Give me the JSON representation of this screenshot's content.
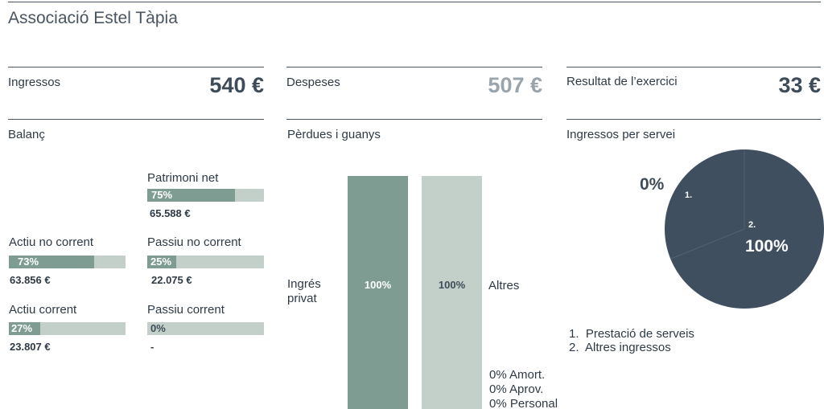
{
  "header": {
    "title": "Associació Estel Tàpia"
  },
  "kpis": {
    "income": {
      "label": "Ingressos",
      "value": "540 €"
    },
    "expenses": {
      "label": "Despeses",
      "value": "507 €"
    },
    "result": {
      "label": "Resultat de l’exercici",
      "value": "33 €"
    }
  },
  "colors": {
    "bar_fill": "#7e9c91",
    "bar_track": "#c3d0c9",
    "pie": "#3f4f60",
    "expenses_value": "#9aa4ad",
    "text": "#2e3a46"
  },
  "balance": {
    "title": "Balanç",
    "items": [
      {
        "key": "patrimoni_net",
        "label": "Patrimoni net",
        "percent": 75,
        "percent_label": "75%",
        "amount": "65.588 €"
      },
      {
        "key": "actiu_no_corrent",
        "label": "Actiu no corrent",
        "percent": 73,
        "percent_label": "73%",
        "amount": "63.856 €"
      },
      {
        "key": "passiu_no_corrent",
        "label": "Passiu no corrent",
        "percent": 25,
        "percent_label": "25%",
        "amount": "22.075 €"
      },
      {
        "key": "actiu_corrent",
        "label": "Actiu corrent",
        "percent": 27,
        "percent_label": "27%",
        "amount": "23.807 €"
      },
      {
        "key": "passiu_corrent",
        "label": "Passiu corrent",
        "percent": 0,
        "percent_label": "0%",
        "amount": "-"
      }
    ]
  },
  "pnl": {
    "title": "Pèrdues i guanys",
    "income_label_line1": "Ingrés",
    "income_label_line2": "privat",
    "income_percent": "100%",
    "expense_percent": "100%",
    "expense_label": "Altres",
    "other_expenses": [
      "0% Amort.",
      "0% Aprov.",
      "0% Personal"
    ]
  },
  "chart_data": {
    "type": "pie",
    "title": "Ingressos per servei",
    "slices": [
      {
        "label": "1.",
        "name": "Prestació de serveis",
        "value": 0,
        "value_label": "0%"
      },
      {
        "label": "2.",
        "name": "Altres ingressos",
        "value": 100,
        "value_label": "100%"
      }
    ],
    "legend": [
      "1.  Prestació de serveis",
      "2.  Altres ingressos"
    ],
    "legend_placement": "bottom"
  }
}
